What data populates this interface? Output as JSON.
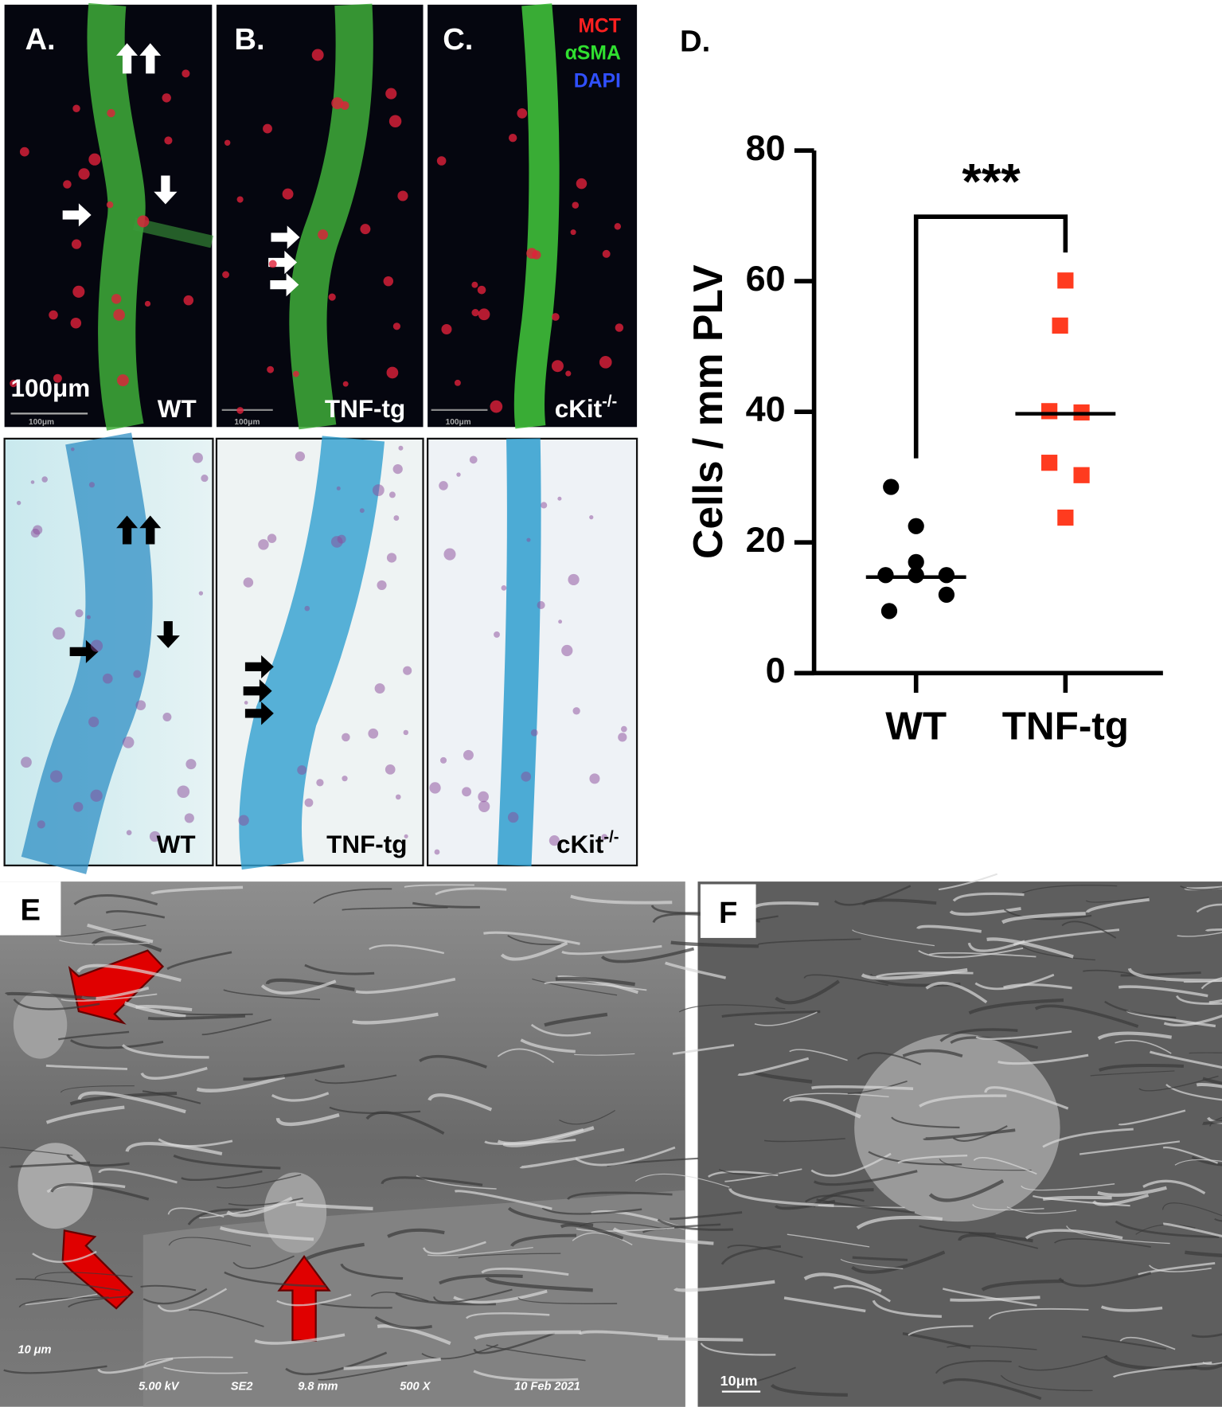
{
  "panels": {
    "a": {
      "label": "A.",
      "genotype": "WT",
      "scale": "100μm",
      "scale_small": "100μm"
    },
    "b": {
      "label": "B.",
      "genotype": "TNF-tg",
      "scale_small": "100μm"
    },
    "c": {
      "label": "C.",
      "genotype_base": "cKit",
      "genotype_sup": "-/-",
      "scale_small": "100μm",
      "legend": [
        "MCT",
        "αSMA",
        "DAPI"
      ]
    },
    "bottom": {
      "wt": "WT",
      "tnf": "TNF-tg",
      "ckit_base": "cKit",
      "ckit_sup": "-/-"
    },
    "e": {
      "label": "E",
      "scale": "10 μm",
      "info": [
        "5.00 kV",
        "SE2",
        "9.8 mm",
        "500 X",
        "10 Feb 2021"
      ]
    },
    "f": {
      "label": "F",
      "scale": "10μm"
    }
  },
  "chart_data": {
    "type": "strip",
    "panel_label": "D.",
    "y_label": "Cells / mm PLV",
    "significance": "***",
    "categories": [
      "WT",
      "TNF-tg"
    ],
    "series": [
      {
        "name": "WT",
        "color": "#000000",
        "marker": "circle",
        "values": [
          28.5,
          22.5,
          17,
          15,
          15,
          15,
          12,
          9.5
        ]
      },
      {
        "name": "TNF-tg",
        "color": "#ff3b1f",
        "marker": "square",
        "values": [
          60.1,
          53.2,
          40.1,
          39.9,
          32.2,
          30.3,
          23.8
        ]
      }
    ],
    "medians": [
      14.7,
      39.7
    ],
    "ylim": [
      0,
      80
    ],
    "yticks": [
      0,
      20,
      40,
      60,
      80
    ]
  }
}
